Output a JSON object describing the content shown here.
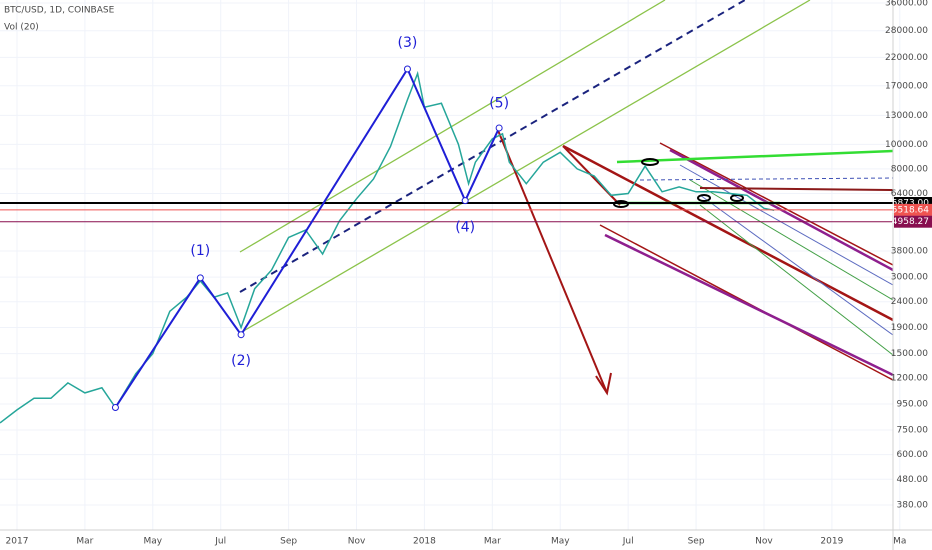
{
  "chart_data": {
    "type": "line",
    "title": "BTC/USD, 1D, COINBASE",
    "subtitle": "Vol (20)",
    "log_scale": true,
    "grid": true,
    "color": "#26a69a",
    "x": [
      -0.5,
      0,
      0.5,
      1,
      1.5,
      2,
      2.5,
      2.9,
      3.5,
      4,
      4.5,
      5,
      5.4,
      5.8,
      6.2,
      6.6,
      7,
      7.5,
      8,
      8.5,
      9,
      9.5,
      10,
      10.5,
      11,
      11.5,
      11.8,
      12,
      12.5,
      13,
      13.3,
      13.5,
      14,
      14.3,
      14.5,
      15,
      15.5,
      16,
      16.5,
      17,
      17.5,
      18,
      18.5,
      19,
      19.5,
      20,
      20.5,
      21,
      21.5,
      22,
      22.3
    ],
    "values": [
      800,
      900,
      1000,
      1000,
      1150,
      1050,
      1100,
      920,
      1250,
      1500,
      2200,
      2500,
      2900,
      2500,
      2600,
      1900,
      2700,
      3200,
      4300,
      4600,
      3700,
      5000,
      6100,
      7300,
      9800,
      15000,
      19000,
      14000,
      14500,
      10000,
      7000,
      8500,
      10500,
      11000,
      8500,
      7000,
      8500,
      9300,
      8000,
      7500,
      6300,
      6400,
      8200,
      6500,
      6800,
      6500,
      6500,
      6400,
      6300,
      5600,
      5500
    ],
    "wave": {
      "color": "#1f1fd6",
      "x": [
        2.9,
        5.4,
        6.6,
        11.5,
        13.2,
        14.2
      ],
      "values": [
        920,
        2980,
        1780,
        19800,
        6000,
        11600
      ]
    },
    "annotations": [
      {
        "text": "(1)",
        "x": 5.4,
        "y": 3800
      },
      {
        "text": "(2)",
        "x": 6.6,
        "y": 1400
      },
      {
        "text": "(3)",
        "x": 11.5,
        "y": 25000
      },
      {
        "text": "(4)",
        "x": 13.2,
        "y": 4700
      },
      {
        "text": "(5)",
        "x": 14.2,
        "y": 14500
      }
    ],
    "price_lines": [
      {
        "value": 5873,
        "label": "5873.00",
        "color": "#000000"
      },
      {
        "value": 5518.64,
        "label": "5518.64",
        "color": "#ef5350"
      },
      {
        "value": 4958.27,
        "label": "4958.27",
        "color": "#880e4f"
      }
    ],
    "xlim": [
      -0.5,
      25.8
    ],
    "xticks": [
      {
        "value": 0,
        "label": "2017"
      },
      {
        "value": 2,
        "label": "Mar"
      },
      {
        "value": 4,
        "label": "May"
      },
      {
        "value": 6,
        "label": "Jul"
      },
      {
        "value": 8,
        "label": "Sep"
      },
      {
        "value": 10,
        "label": "Nov"
      },
      {
        "value": 12,
        "label": "2018"
      },
      {
        "value": 14,
        "label": "Mar"
      },
      {
        "value": 16,
        "label": "May"
      },
      {
        "value": 18,
        "label": "Jul"
      },
      {
        "value": 20,
        "label": "Sep"
      },
      {
        "value": 22,
        "label": "Nov"
      },
      {
        "value": 24,
        "label": "2019"
      },
      {
        "value": 26,
        "label": "Ma"
      }
    ],
    "ylim": [
      303,
      37000
    ],
    "yticks": [
      {
        "value": 36000,
        "label": "36000.00"
      },
      {
        "value": 28000,
        "label": "28000.00"
      },
      {
        "value": 22000,
        "label": "22000.00"
      },
      {
        "value": 17000,
        "label": "17000.00"
      },
      {
        "value": 13000,
        "label": "13000.00"
      },
      {
        "value": 10000,
        "label": "10000.00"
      },
      {
        "value": 8000,
        "label": "8000.00"
      },
      {
        "value": 6400,
        "label": "6400.00"
      },
      {
        "value": 3800,
        "label": "3800.00"
      },
      {
        "value": 3000,
        "label": "3000.00"
      },
      {
        "value": 2400,
        "label": "2400.00"
      },
      {
        "value": 1900,
        "label": "1900.00"
      },
      {
        "value": 1500,
        "label": "1500.00"
      },
      {
        "value": 1200,
        "label": "1200.00"
      },
      {
        "value": 950,
        "label": "950.00"
      },
      {
        "value": 750,
        "label": "750.00"
      },
      {
        "value": 600,
        "label": "600.00"
      },
      {
        "value": 480,
        "label": "480.00"
      },
      {
        "value": 380,
        "label": "380.00"
      }
    ]
  }
}
